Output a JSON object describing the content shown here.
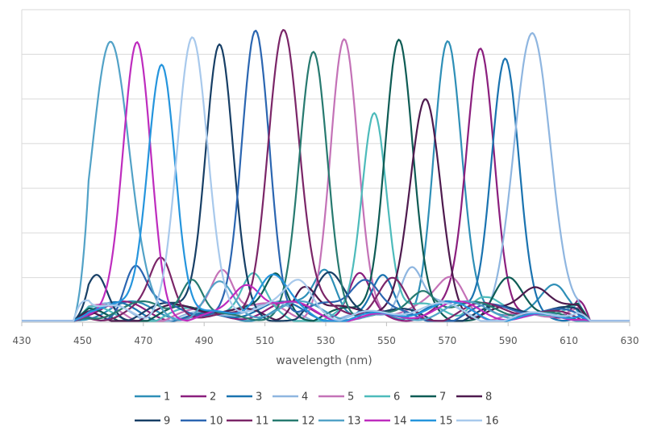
{
  "chart_data": {
    "type": "line",
    "title": "",
    "xlabel": "wavelength (nm)",
    "ylabel": "",
    "xlim": [
      430,
      630
    ],
    "ylim": [
      0,
      1
    ],
    "x_ticks": [
      "430",
      "450",
      "470",
      "490",
      "510",
      "530",
      "550",
      "570",
      "590",
      "610",
      "630"
    ],
    "grid": "horizontal",
    "legend": "bottom",
    "series": [
      {
        "name": "1",
        "color": "#2e8fb7",
        "peak": 570,
        "height": 0.85,
        "width": 4.5,
        "offset": 0.0
      },
      {
        "name": "2",
        "color": "#8b1f7e",
        "peak": 581,
        "height": 0.84,
        "width": 4.5,
        "offset": 0.7
      },
      {
        "name": "3",
        "color": "#1a73b0",
        "peak": 589,
        "height": 0.83,
        "width": 4.5,
        "offset": 1.4
      },
      {
        "name": "4",
        "color": "#8fb6e0",
        "peak": 598,
        "height": 0.9,
        "width": 6.0,
        "offset": 2.1
      },
      {
        "name": "5",
        "color": "#c472b7",
        "peak": 536,
        "height": 0.88,
        "width": 4.5,
        "offset": 2.8
      },
      {
        "name": "6",
        "color": "#4dbbbb",
        "peak": 546,
        "height": 0.64,
        "width": 4.0,
        "offset": 3.5
      },
      {
        "name": "7",
        "color": "#0e5c55",
        "peak": 554,
        "height": 0.86,
        "width": 4.5,
        "offset": 4.2
      },
      {
        "name": "8",
        "color": "#4e1a4e",
        "peak": 563,
        "height": 0.68,
        "width": 5.0,
        "offset": 4.9
      },
      {
        "name": "9",
        "color": "#173f66",
        "peak": 495,
        "height": 0.86,
        "width": 4.5,
        "offset": 5.6
      },
      {
        "name": "10",
        "color": "#2b66b1",
        "peak": 507,
        "height": 0.92,
        "width": 4.5,
        "offset": 6.3
      },
      {
        "name": "11",
        "color": "#7b2668",
        "peak": 516,
        "height": 0.92,
        "width": 5.0,
        "offset": 7.0
      },
      {
        "name": "12",
        "color": "#277a70",
        "peak": 526,
        "height": 0.8,
        "width": 4.5,
        "offset": 7.7
      },
      {
        "name": "13",
        "color": "#52a2c7",
        "peak": 459,
        "height": 0.86,
        "width": 6.0,
        "offset": 8.4
      },
      {
        "name": "14",
        "color": "#be2cbe",
        "peak": 468,
        "height": 0.84,
        "width": 4.5,
        "offset": 9.1
      },
      {
        "name": "15",
        "color": "#2595dd",
        "peak": 476,
        "height": 0.82,
        "width": 4.5,
        "offset": 9.8
      },
      {
        "name": "16",
        "color": "#a8c9ec",
        "peak": 486,
        "height": 0.88,
        "width": 5.0,
        "offset": 10.5
      }
    ]
  }
}
